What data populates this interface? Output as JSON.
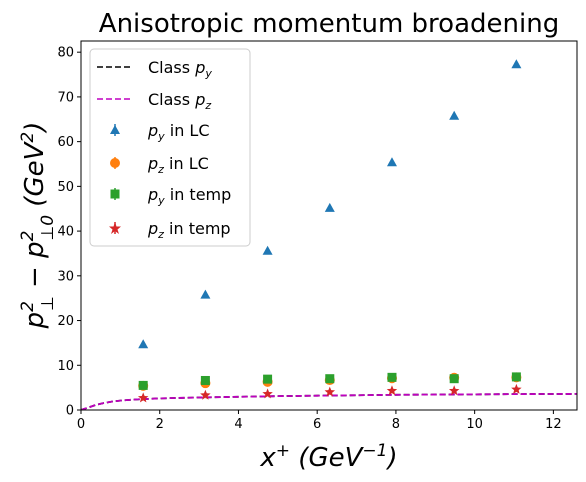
{
  "chart_data": {
    "type": "scatter",
    "title": "Anisotropic momentum broadening",
    "xlabel": "x⁺ (GeV⁻¹)",
    "ylabel": "p⊥² − p⊥0² (GeV²)",
    "xlim": [
      0,
      12.6
    ],
    "ylim": [
      0,
      82.5
    ],
    "x_ticks": [
      "0",
      "2",
      "4",
      "6",
      "8",
      "10",
      "12"
    ],
    "y_ticks": [
      "0",
      "10",
      "20",
      "30",
      "40",
      "50",
      "60",
      "70",
      "80"
    ],
    "legend_position": "top-left",
    "series": [
      {
        "name": "Class p_y",
        "kind": "dashed-line",
        "color": "#000000",
        "x": [
          0,
          0.2,
          0.4,
          0.6,
          0.8,
          1.0,
          1.3,
          1.6,
          2.0,
          3.0,
          4.0,
          5.0,
          6.0,
          7.0,
          8.0,
          9.0,
          10.0,
          11.0,
          12.6
        ],
        "y": [
          0,
          0.6,
          1.2,
          1.6,
          1.9,
          2.1,
          2.3,
          2.45,
          2.6,
          2.8,
          2.95,
          3.1,
          3.2,
          3.3,
          3.4,
          3.45,
          3.5,
          3.55,
          3.6
        ]
      },
      {
        "name": "Class p_z",
        "kind": "dashed-line",
        "color": "#bf00bf",
        "x": [
          0,
          0.2,
          0.4,
          0.6,
          0.8,
          1.0,
          1.3,
          1.6,
          2.0,
          3.0,
          4.0,
          5.0,
          6.0,
          7.0,
          8.0,
          9.0,
          10.0,
          11.0,
          12.6
        ],
        "y": [
          0,
          0.6,
          1.2,
          1.6,
          1.9,
          2.1,
          2.3,
          2.45,
          2.6,
          2.8,
          2.95,
          3.1,
          3.2,
          3.3,
          3.4,
          3.45,
          3.5,
          3.55,
          3.6
        ]
      },
      {
        "name": "p_y in LC",
        "kind": "triangle",
        "color": "#1f77b4",
        "x": [
          1.58,
          3.16,
          4.74,
          6.32,
          7.9,
          9.48,
          11.06
        ],
        "y": [
          14.7,
          25.8,
          35.6,
          45.2,
          55.4,
          65.8,
          77.3
        ]
      },
      {
        "name": "p_z in LC",
        "kind": "circle",
        "color": "#ff7f0e",
        "x": [
          1.58,
          3.16,
          4.74,
          6.32,
          7.9,
          9.48,
          11.06
        ],
        "y": [
          5.4,
          6.0,
          6.3,
          6.7,
          7.1,
          7.2,
          7.3
        ]
      },
      {
        "name": "p_y in temp",
        "kind": "square",
        "color": "#2ca02c",
        "x": [
          1.58,
          3.16,
          4.74,
          6.32,
          7.9,
          9.48,
          11.06
        ],
        "y": [
          5.5,
          6.6,
          6.9,
          7.0,
          7.3,
          7.0,
          7.4
        ]
      },
      {
        "name": "p_z in temp",
        "kind": "star",
        "color": "#d62728",
        "x": [
          1.58,
          3.16,
          4.74,
          6.32,
          7.9,
          9.48,
          11.06
        ],
        "y": [
          2.7,
          3.3,
          3.6,
          4.0,
          4.3,
          4.3,
          4.6
        ]
      }
    ]
  }
}
